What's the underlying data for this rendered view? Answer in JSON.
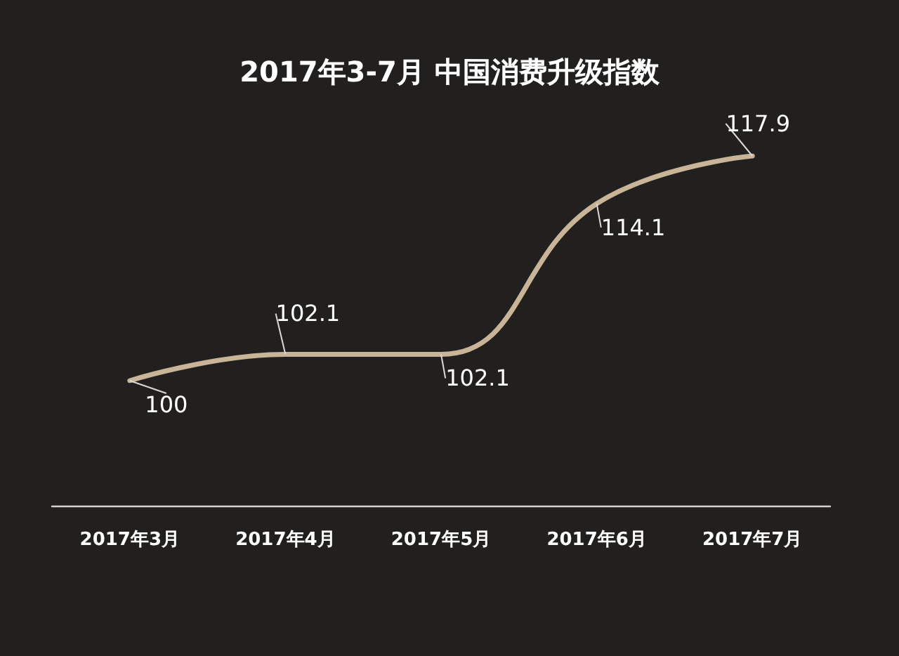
{
  "chart_data": {
    "type": "line",
    "title": "2017年3-7月 中国消费升级指数",
    "categories": [
      "2017年3月",
      "2017年4月",
      "2017年5月",
      "2017年6月",
      "2017年7月"
    ],
    "series": [
      {
        "color": "#c8b496",
        "values": [
          100,
          102.1,
          102.1,
          114.1,
          117.9
        ]
      }
    ],
    "tick_labels": "x",
    "data_labels": true,
    "marker": "none",
    "line_style": "solid"
  }
}
